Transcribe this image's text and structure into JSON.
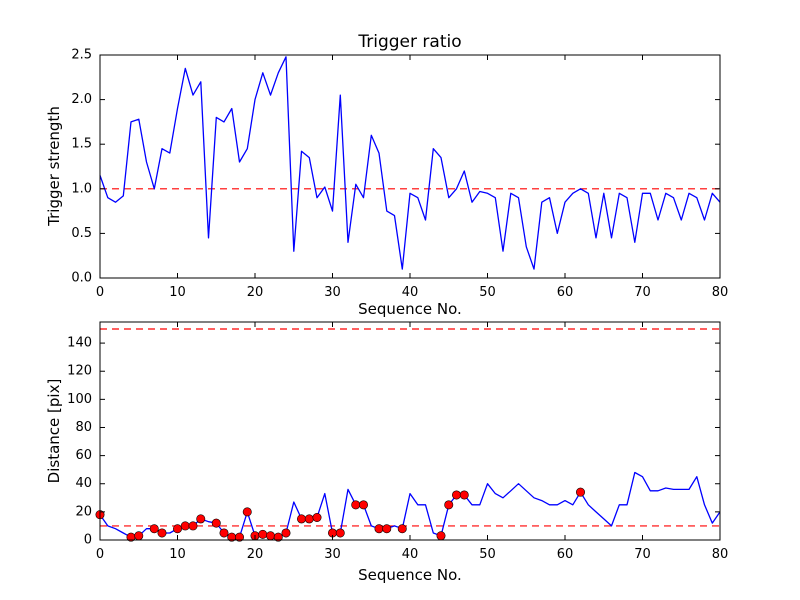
{
  "figure": {
    "background": "#ffffff",
    "line_color": "#0000ff",
    "dashed_color": "#ff0000",
    "marker_color": "#ff0000",
    "marker_edge_color": "#000000",
    "axis_color": "#000000"
  },
  "chart_data": [
    {
      "type": "line",
      "title": "Trigger ratio",
      "xlabel": "Sequence No.",
      "ylabel": "Trigger strength",
      "xlim": [
        0,
        80
      ],
      "ylim": [
        0.0,
        2.5
      ],
      "xticks": [
        0,
        10,
        20,
        30,
        40,
        50,
        60,
        70,
        80
      ],
      "yticks": [
        0.0,
        0.5,
        1.0,
        1.5,
        2.0,
        2.5
      ],
      "ytick_labels": [
        "0.0",
        "0.5",
        "1.0",
        "1.5",
        "2.0",
        "2.5"
      ],
      "grid": false,
      "legend": null,
      "hlines": [
        1.0
      ],
      "hline_style": "dashed",
      "series": [
        {
          "name": "trigger-strength",
          "style": "solid-line",
          "values": [
            1.15,
            0.9,
            0.85,
            0.92,
            1.75,
            1.78,
            1.3,
            1.0,
            1.45,
            1.4,
            1.9,
            2.35,
            2.05,
            2.2,
            0.45,
            1.8,
            1.75,
            1.9,
            1.3,
            1.45,
            2.0,
            2.3,
            2.05,
            2.3,
            2.48,
            0.3,
            1.42,
            1.35,
            0.9,
            1.02,
            0.75,
            2.05,
            0.4,
            1.05,
            0.9,
            1.6,
            1.4,
            0.75,
            0.7,
            0.1,
            0.95,
            0.9,
            0.65,
            1.45,
            1.35,
            0.9,
            1.0,
            1.2,
            0.85,
            0.97,
            0.95,
            0.9,
            0.3,
            0.95,
            0.9,
            0.35,
            0.1,
            0.85,
            0.9,
            0.5,
            0.85,
            0.95,
            1.0,
            0.95,
            0.45,
            0.95,
            0.45,
            0.95,
            0.9,
            0.4,
            0.95,
            0.95,
            0.65,
            0.95,
            0.9,
            0.65,
            0.95,
            0.9,
            0.65,
            0.95,
            0.85
          ]
        }
      ]
    },
    {
      "type": "line",
      "title": "",
      "xlabel": "Sequence No.",
      "ylabel": "Distance [pix]",
      "xlim": [
        0,
        80
      ],
      "ylim": [
        0,
        155
      ],
      "xticks": [
        0,
        10,
        20,
        30,
        40,
        50,
        60,
        70,
        80
      ],
      "yticks": [
        0,
        20,
        40,
        60,
        80,
        100,
        120,
        140
      ],
      "ytick_labels": [
        "0",
        "20",
        "40",
        "60",
        "80",
        "100",
        "120",
        "140"
      ],
      "grid": false,
      "legend": null,
      "hlines": [
        150,
        10
      ],
      "hline_style": "dashed",
      "series": [
        {
          "name": "distance",
          "style": "solid-line",
          "values": [
            18,
            10,
            8,
            5,
            2,
            3,
            8,
            8,
            5,
            5,
            8,
            10,
            10,
            15,
            13,
            12,
            5,
            2,
            2,
            20,
            3,
            4,
            3,
            2,
            5,
            27,
            15,
            15,
            16,
            33,
            5,
            5,
            36,
            25,
            25,
            10,
            8,
            8,
            10,
            8,
            33,
            25,
            25,
            5,
            3,
            25,
            32,
            32,
            25,
            25,
            40,
            33,
            30,
            35,
            40,
            35,
            30,
            28,
            25,
            25,
            28,
            25,
            34,
            25,
            20,
            15,
            10,
            25,
            25,
            48,
            45,
            35,
            35,
            37,
            36,
            36,
            36,
            45,
            25,
            12,
            20
          ]
        }
      ],
      "marker_indices": [
        0,
        4,
        5,
        7,
        8,
        10,
        11,
        12,
        13,
        15,
        16,
        17,
        18,
        19,
        20,
        21,
        22,
        23,
        24,
        26,
        27,
        28,
        30,
        31,
        33,
        34,
        36,
        37,
        39,
        44,
        45,
        46,
        47,
        62
      ]
    }
  ]
}
